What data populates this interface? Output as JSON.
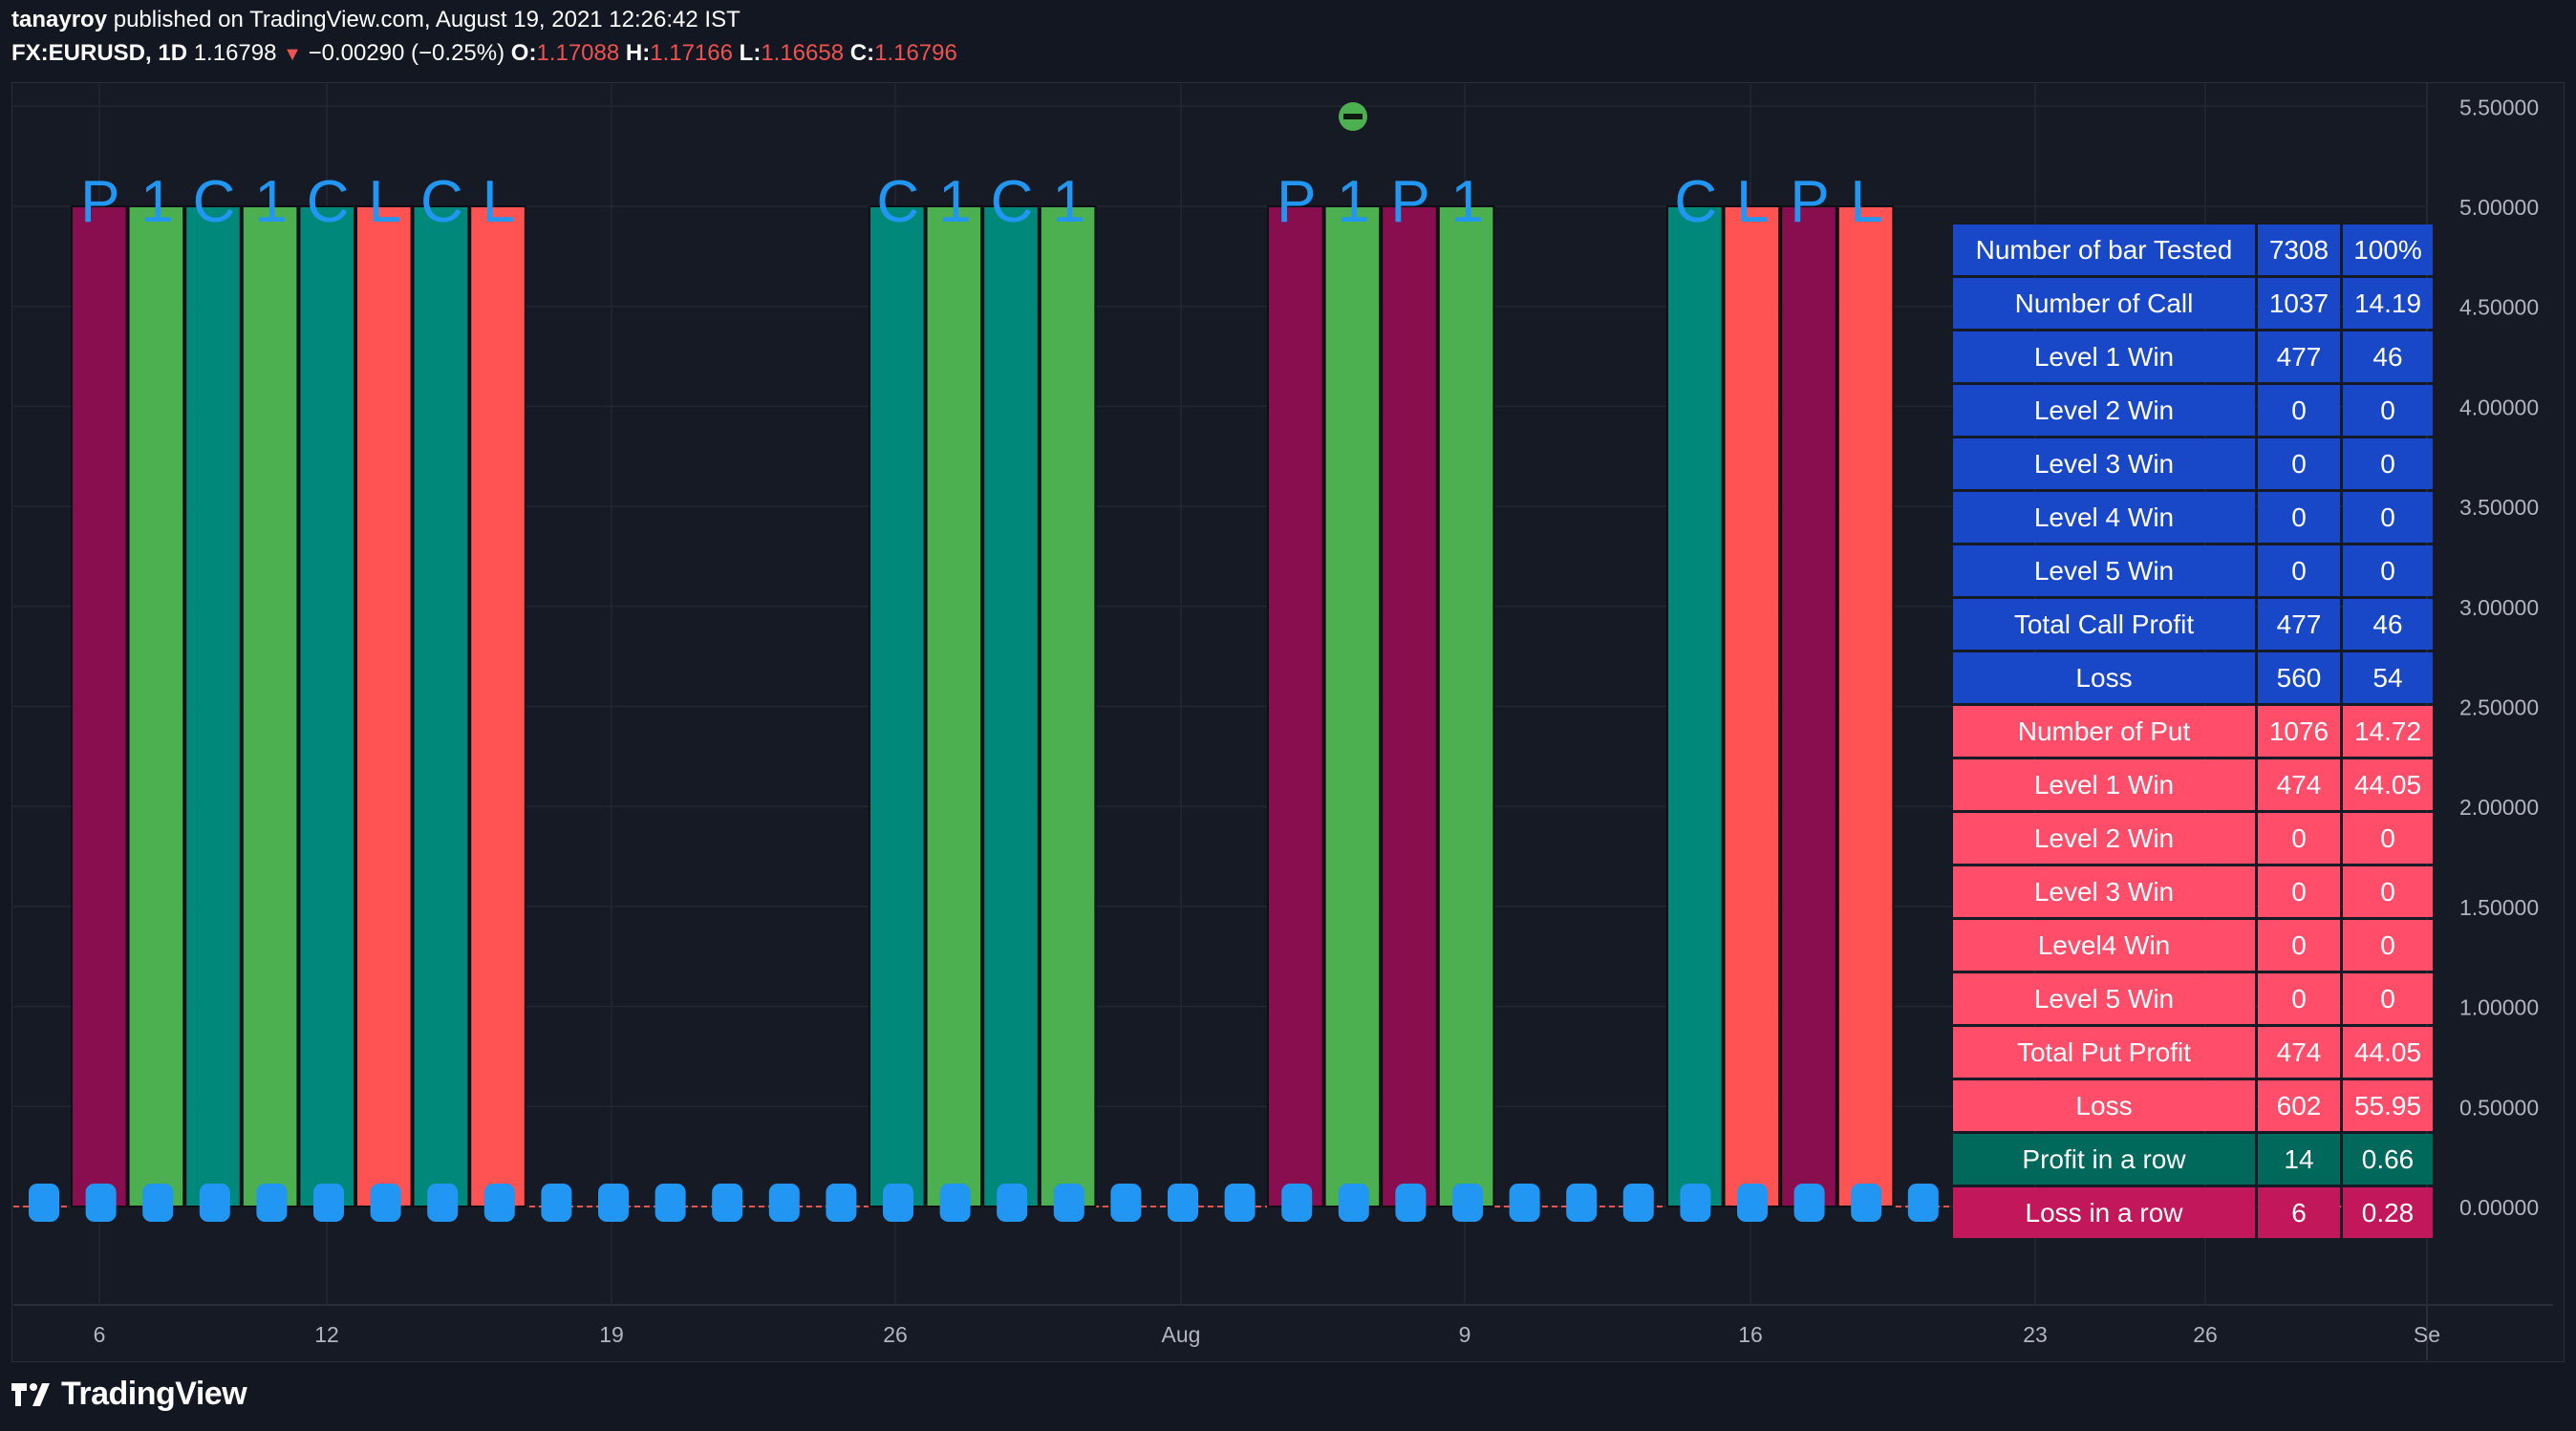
{
  "header": {
    "user": "tanayroy",
    "published": "published on TradingView.com, August 19, 2021 12:26:42 IST"
  },
  "symbol": {
    "name": "FX:EURUSD, 1D",
    "price": "1.16798",
    "change": "−0.00290 (−0.25%)",
    "o_label": "O:",
    "o": "1.17088",
    "h_label": "H:",
    "h": "1.17166",
    "l_label": "L:",
    "l": "1.16658",
    "c_label": "C:",
    "c": "1.16796"
  },
  "colors": {
    "put": "#880e4f",
    "win": "#4caf50",
    "call": "#00897b",
    "loss": "#ff5252",
    "label_blue": "#2196f3",
    "table_blue": "#1848c8",
    "table_pink": "#ff4d6a",
    "table_teal": "#00695c",
    "table_magenta": "#c2185b"
  },
  "chart_data": {
    "type": "bar",
    "y_axis": [
      "5.50000",
      "5.00000",
      "4.50000",
      "4.00000",
      "3.50000",
      "3.00000",
      "2.50000",
      "2.00000",
      "1.50000",
      "1.00000",
      "0.50000",
      "0.00000"
    ],
    "x_axis": [
      "6",
      "12",
      "19",
      "26",
      "Aug",
      "9",
      "16",
      "23",
      "26",
      "Se"
    ],
    "ylim": [
      0,
      5.5
    ],
    "bar_groups": [
      {
        "bars": [
          "put",
          "win",
          "call",
          "win",
          "call",
          "loss",
          "call",
          "loss"
        ],
        "labels": [
          "P",
          "1",
          "C",
          "1",
          "C",
          "L",
          "C",
          "L"
        ],
        "value": 5.0
      },
      {
        "bars": [
          "call",
          "win",
          "call",
          "win"
        ],
        "labels": [
          "C",
          "1",
          "C",
          "1"
        ],
        "value": 5.0
      },
      {
        "bars": [
          "put",
          "win",
          "put",
          "win"
        ],
        "labels": [
          "P",
          "1",
          "P",
          "1"
        ],
        "value": 5.0
      },
      {
        "bars": [
          "call",
          "loss",
          "put",
          "loss"
        ],
        "labels": [
          "C",
          "L",
          "P",
          "L"
        ],
        "value": 5.0
      }
    ]
  },
  "stats_table": [
    {
      "label": "Number of bar Tested",
      "v1": "7308",
      "v2": "100%",
      "color": "table_blue"
    },
    {
      "label": "Number of Call",
      "v1": "1037",
      "v2": "14.19",
      "color": "table_blue"
    },
    {
      "label": "Level 1 Win",
      "v1": "477",
      "v2": "46",
      "color": "table_blue"
    },
    {
      "label": "Level 2 Win",
      "v1": "0",
      "v2": "0",
      "color": "table_blue"
    },
    {
      "label": "Level 3 Win",
      "v1": "0",
      "v2": "0",
      "color": "table_blue"
    },
    {
      "label": "Level 4 Win",
      "v1": "0",
      "v2": "0",
      "color": "table_blue"
    },
    {
      "label": "Level 5 Win",
      "v1": "0",
      "v2": "0",
      "color": "table_blue"
    },
    {
      "label": "Total Call Profit",
      "v1": "477",
      "v2": "46",
      "color": "table_blue"
    },
    {
      "label": "Loss",
      "v1": "560",
      "v2": "54",
      "color": "table_blue"
    },
    {
      "label": "Number of Put",
      "v1": "1076",
      "v2": "14.72",
      "color": "table_pink"
    },
    {
      "label": "Level 1 Win",
      "v1": "474",
      "v2": "44.05",
      "color": "table_pink"
    },
    {
      "label": "Level 2 Win",
      "v1": "0",
      "v2": "0",
      "color": "table_pink"
    },
    {
      "label": "Level 3 Win",
      "v1": "0",
      "v2": "0",
      "color": "table_pink"
    },
    {
      "label": "Level4 Win",
      "v1": "0",
      "v2": "0",
      "color": "table_pink"
    },
    {
      "label": "Level 5 Win",
      "v1": "0",
      "v2": "0",
      "color": "table_pink"
    },
    {
      "label": "Total Put Profit",
      "v1": "474",
      "v2": "44.05",
      "color": "table_pink"
    },
    {
      "label": "Loss",
      "v1": "602",
      "v2": "55.95",
      "color": "table_pink"
    },
    {
      "label": "Profit in a row",
      "v1": "14",
      "v2": "0.66",
      "color": "table_teal"
    },
    {
      "label": "Loss in a row",
      "v1": "6",
      "v2": "0.28",
      "color": "table_magenta"
    }
  ],
  "footer": {
    "brand": "TradingView"
  }
}
